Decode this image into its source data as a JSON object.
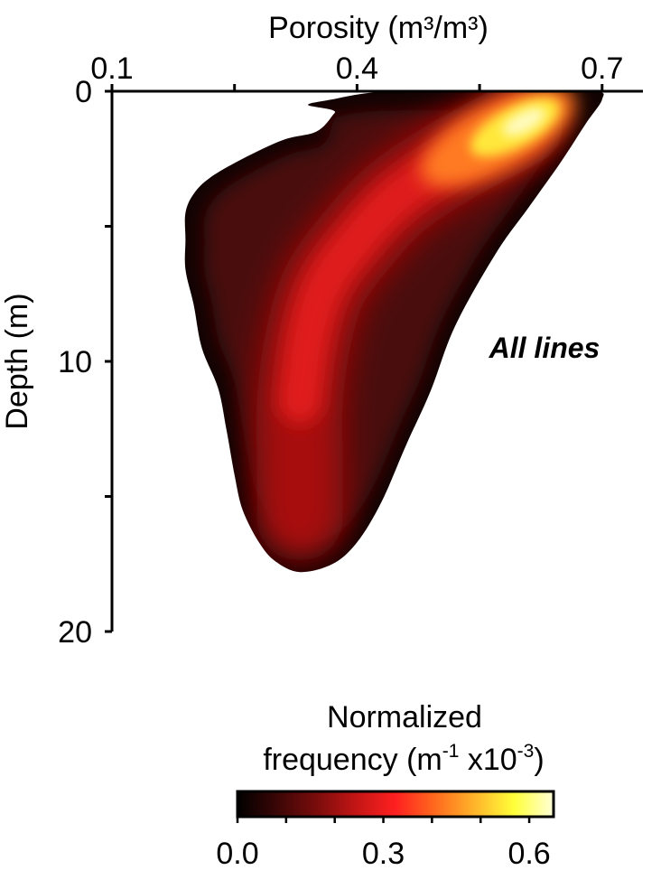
{
  "chart_data": {
    "type": "heatmap",
    "title": "",
    "xlabel": "Porosity (m³/m³)",
    "ylabel": "Depth (m)",
    "x_axis_position": "top",
    "y_axis_inverted": true,
    "xlim": [
      0.1,
      0.75
    ],
    "ylim": [
      0,
      20
    ],
    "x_ticks": [
      0.1,
      0.4,
      0.7
    ],
    "x_tick_labels": [
      "0.1",
      "0.4",
      "0.7"
    ],
    "x_minor_ticks": [
      0.25,
      0.55
    ],
    "y_ticks": [
      0,
      10,
      20
    ],
    "y_tick_labels": [
      "0",
      "10",
      "20"
    ],
    "y_minor_ticks": [
      5,
      15
    ],
    "annotation": "All lines",
    "grid": false,
    "density_outline": [
      [
        0.34,
        0.5
      ],
      [
        0.37,
        0.3
      ],
      [
        0.42,
        0.05
      ],
      [
        0.5,
        0.0
      ],
      [
        0.6,
        0.0
      ],
      [
        0.69,
        0.0
      ],
      [
        0.7,
        0.3
      ],
      [
        0.68,
        1.2
      ],
      [
        0.65,
        2.6
      ],
      [
        0.61,
        4.3
      ],
      [
        0.57,
        6.0
      ],
      [
        0.52,
        8.7
      ],
      [
        0.49,
        11.1
      ],
      [
        0.46,
        13.1
      ],
      [
        0.43,
        15.2
      ],
      [
        0.4,
        16.7
      ],
      [
        0.37,
        17.5
      ],
      [
        0.33,
        17.8
      ],
      [
        0.3,
        17.4
      ],
      [
        0.28,
        16.7
      ],
      [
        0.26,
        15.5
      ],
      [
        0.25,
        14.2
      ],
      [
        0.24,
        12.5
      ],
      [
        0.23,
        11.0
      ],
      [
        0.21,
        9.5
      ],
      [
        0.2,
        7.9
      ],
      [
        0.19,
        6.6
      ],
      [
        0.19,
        5.5
      ],
      [
        0.19,
        4.5
      ],
      [
        0.2,
        3.8
      ],
      [
        0.22,
        3.2
      ],
      [
        0.26,
        2.5
      ],
      [
        0.31,
        1.8
      ],
      [
        0.35,
        1.5
      ],
      [
        0.37,
        0.9
      ],
      [
        0.37,
        0.7
      ]
    ],
    "density_peak": {
      "porosity": 0.6,
      "depth": 1.2,
      "value": 0.63
    },
    "density_ridge": [
      [
        0.6,
        1.2
      ],
      [
        0.52,
        2.5
      ],
      [
        0.45,
        3.9
      ],
      [
        0.4,
        5.5
      ],
      [
        0.36,
        7.2
      ],
      [
        0.34,
        9.2
      ],
      [
        0.33,
        11.5
      ],
      [
        0.33,
        13.8
      ],
      [
        0.33,
        15.8
      ]
    ],
    "colorbar": {
      "title_line1": "Normalized",
      "title_line2_main": "frequency (m",
      "title_line2_sup1": "-1",
      "title_line2_mid": " x10",
      "title_line2_sup2": "-3",
      "title_line2_end": ")",
      "range": [
        0.0,
        0.65
      ],
      "ticks": [
        0.0,
        0.1,
        0.2,
        0.3,
        0.4,
        0.5,
        0.6
      ],
      "tick_labels": [
        "0.0",
        "0.3",
        "0.6"
      ],
      "colormap": [
        "#000000",
        "#3b0606",
        "#7a0c0c",
        "#c41515",
        "#ff2020",
        "#ff6a1e",
        "#ffb42a",
        "#ffff3a",
        "#ffffd8"
      ]
    }
  }
}
